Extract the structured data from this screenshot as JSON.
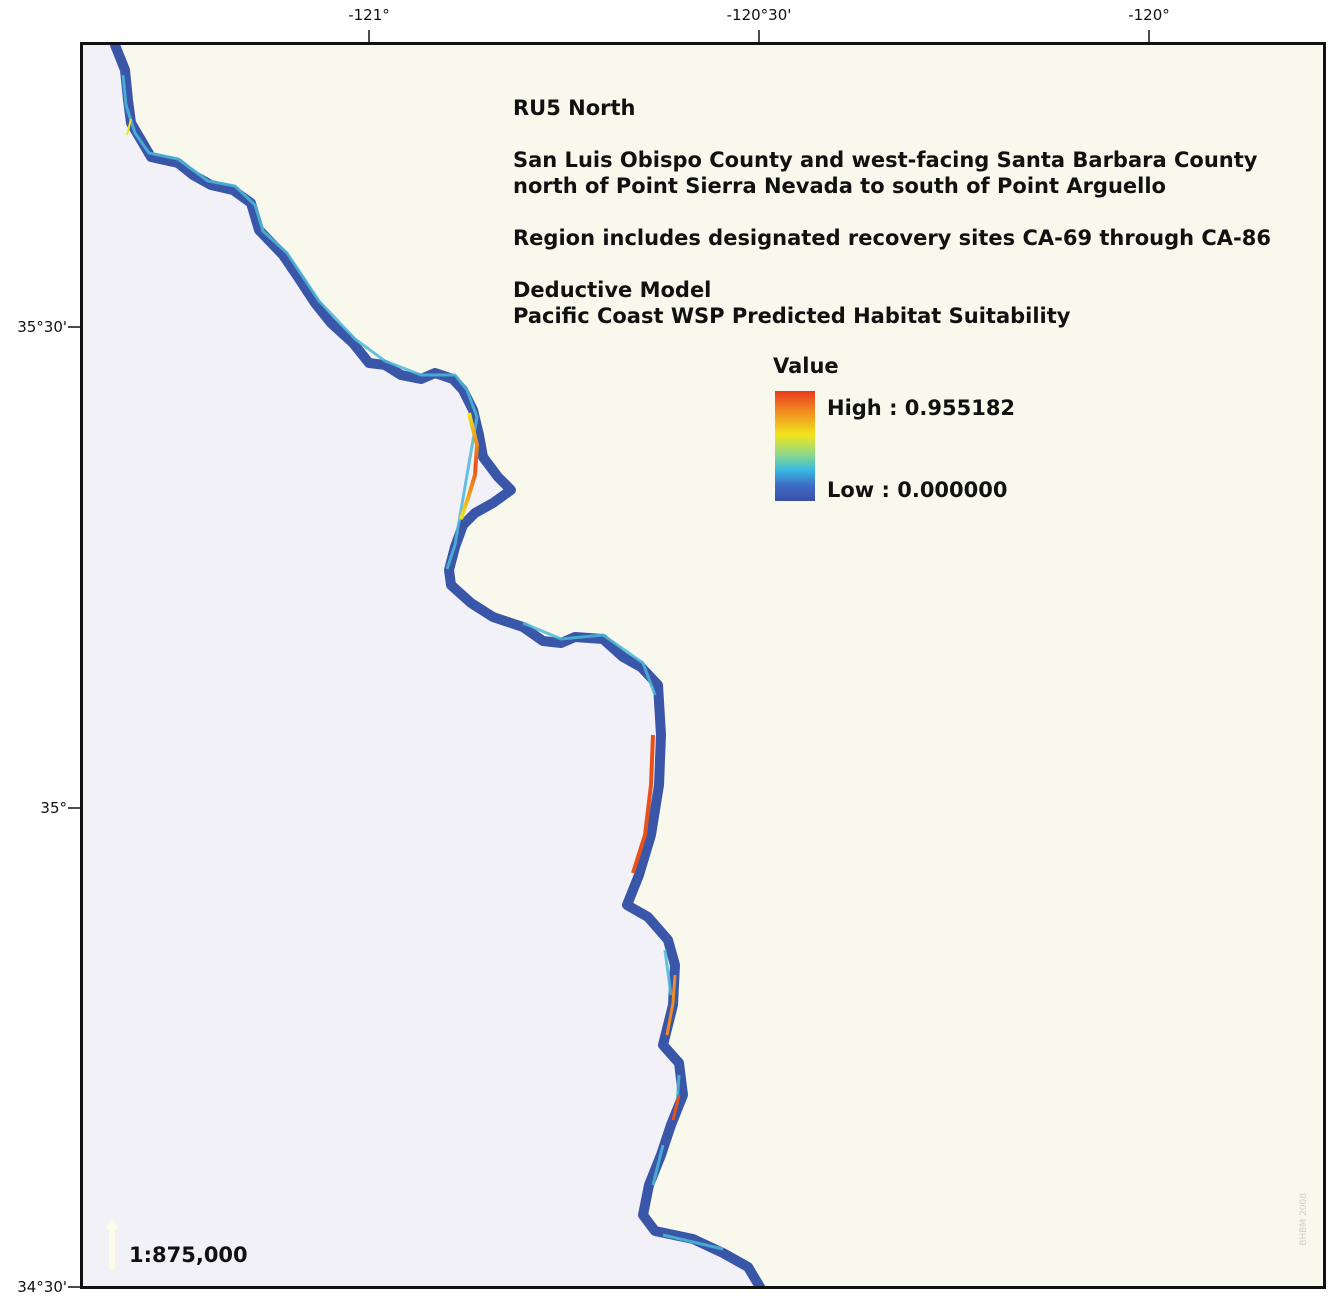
{
  "longitude_labels": [
    "-121°",
    "-120°30'",
    "-120°"
  ],
  "latitude_labels": [
    "35°30'",
    "35°",
    "34°30'"
  ],
  "info": {
    "title": "RU5 North",
    "extent": "San Luis Obispo County and west-facing Santa Barbara County\nnorth of Point Sierra Nevada to south of Point Arguello",
    "sites": "Region includes designated recovery sites CA-69 through CA-86",
    "model": "Deductive Model\nPacific Coast WSP Predicted Habitat Suitability"
  },
  "legend": {
    "title": "Value",
    "high_label": "High : 0.955182",
    "low_label": "Low : 0.000000"
  },
  "scale": "1:875,000",
  "watermark": "BHBM 2008",
  "colors": {
    "land": "#f8f8ec",
    "ocean": "#f2f1f7",
    "low": "#3a56a8",
    "mid": "#4bb8d8",
    "high": "#e8501c"
  }
}
